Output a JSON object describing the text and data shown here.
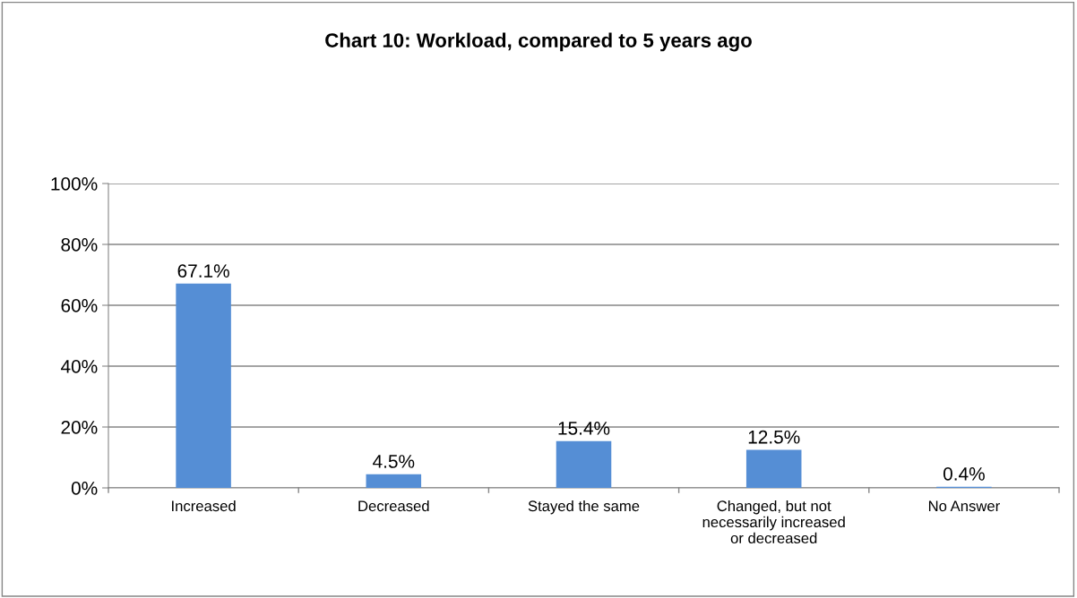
{
  "chart_data": {
    "type": "bar",
    "title": "Chart 10: Workload, compared to 5 years ago",
    "categories": [
      "Increased",
      "Decreased",
      "Stayed the same",
      "Changed, but not\nnecessarily increased\nor decreased",
      "No Answer"
    ],
    "values": [
      67.1,
      4.5,
      15.4,
      12.5,
      0.4
    ],
    "value_labels": [
      "67.1%",
      "4.5%",
      "15.4%",
      "12.5%",
      "0.4%"
    ],
    "color": "#558ed5",
    "ylim": [
      0,
      100
    ],
    "yticks": [
      {
        "value": 0,
        "label": "0%"
      },
      {
        "value": 20,
        "label": "20%"
      },
      {
        "value": 40,
        "label": "40%"
      },
      {
        "value": 60,
        "label": "60%"
      },
      {
        "value": 80,
        "label": "80%"
      },
      {
        "value": 100,
        "label": "100%"
      }
    ],
    "grid": "y",
    "legend": false
  }
}
